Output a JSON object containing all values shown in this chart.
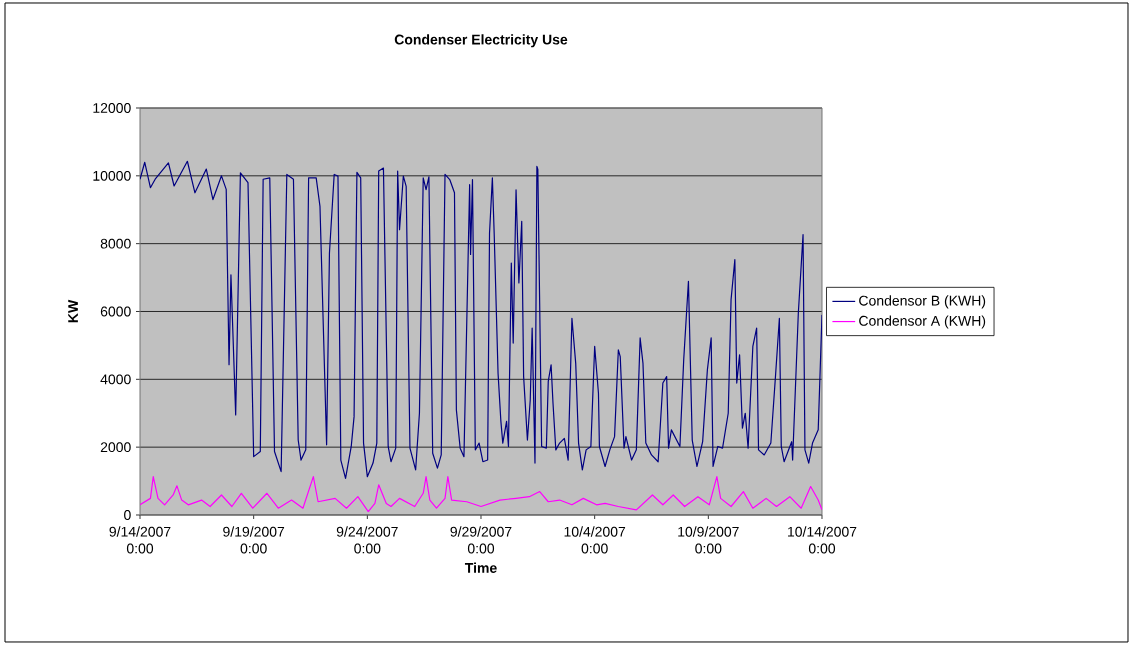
{
  "chart_data": {
    "type": "line",
    "title": "Condenser Electricity Use",
    "xlabel": "Time",
    "ylabel": "KW",
    "xlim": [
      "2007-09-14T00:00",
      "2007-10-14T00:00"
    ],
    "xticks": [
      {
        "value": "2007-09-14T00:00",
        "label": "9/14/2007 0:00"
      },
      {
        "value": "2007-09-19T00:00",
        "label": "9/19/2007 0:00"
      },
      {
        "value": "2007-09-24T00:00",
        "label": "9/24/2007 0:00"
      },
      {
        "value": "2007-09-29T00:00",
        "label": "9/29/2007 0:00"
      },
      {
        "value": "2007-10-04T00:00",
        "label": "10/4/2007 0:00"
      },
      {
        "value": "2007-10-09T00:00",
        "label": "10/9/2007 0:00"
      },
      {
        "value": "2007-10-14T00:00",
        "label": "10/14/2007 0:00"
      }
    ],
    "ylim": [
      0,
      12000
    ],
    "yticks": [
      0,
      2000,
      4000,
      6000,
      8000,
      10000,
      12000
    ],
    "grid": "y",
    "legend": "right",
    "series": [
      {
        "name": "Condensor B (KWH)",
        "color": "#000080",
        "x": [
          "2007-09-14T00:00",
          "2007-09-14T05:00",
          "2007-09-14T11:00",
          "2007-09-14T16:00",
          "2007-09-15T06:00",
          "2007-09-15T12:00",
          "2007-09-16T02:00",
          "2007-09-16T10:00",
          "2007-09-16T22:00",
          "2007-09-17T05:00",
          "2007-09-17T14:00",
          "2007-09-17T19:00",
          "2007-09-17T22:00",
          "2007-09-18T00:00",
          "2007-09-18T05:00",
          "2007-09-18T10:00",
          "2007-09-18T18:00",
          "2007-09-19T00:00",
          "2007-09-19T07:00",
          "2007-09-19T10:00",
          "2007-09-19T17:00",
          "2007-09-19T22:00",
          "2007-09-20T05:00",
          "2007-09-20T11:00",
          "2007-09-20T18:00",
          "2007-09-20T23:00",
          "2007-09-21T02:00",
          "2007-09-21T07:00",
          "2007-09-21T10:00",
          "2007-09-21T18:00",
          "2007-09-21T22:00",
          "2007-09-22T05:00",
          "2007-09-22T08:00",
          "2007-09-22T13:00",
          "2007-09-22T17:00",
          "2007-09-22T20:00",
          "2007-09-23T01:00",
          "2007-09-23T07:00",
          "2007-09-23T10:00",
          "2007-09-23T13:00",
          "2007-09-23T17:00",
          "2007-09-23T20:00",
          "2007-09-24T00:00",
          "2007-09-24T06:00",
          "2007-09-24T10:00",
          "2007-09-24T12:00",
          "2007-09-24T17:00",
          "2007-09-24T22:00",
          "2007-09-25T01:00",
          "2007-09-25T06:00",
          "2007-09-25T08:00",
          "2007-09-25T10:00",
          "2007-09-25T14:00",
          "2007-09-25T17:00",
          "2007-09-25T21:00",
          "2007-09-26T03:00",
          "2007-09-26T07:00",
          "2007-09-26T11:00",
          "2007-09-26T14:00",
          "2007-09-26T17:00",
          "2007-09-26T21:00",
          "2007-09-27T02:00",
          "2007-09-27T06:00",
          "2007-09-27T10:00",
          "2007-09-27T15:00",
          "2007-09-27T20:00",
          "2007-09-27T22:00",
          "2007-09-28T02:00",
          "2007-09-28T06:00",
          "2007-09-28T12:00",
          "2007-09-28T13:00",
          "2007-09-28T15:00",
          "2007-09-28T18:00",
          "2007-09-28T22:00",
          "2007-09-29T02:00",
          "2007-09-29T07:00",
          "2007-09-29T09:00",
          "2007-09-29T12:00",
          "2007-09-29T14:00",
          "2007-09-29T18:00",
          "2007-09-29T21:00",
          "2007-09-29T23:00",
          "2007-09-30T03:00",
          "2007-09-30T05:00",
          "2007-09-30T08:00",
          "2007-09-30T10:00",
          "2007-09-30T13:00",
          "2007-09-30T16:00",
          "2007-09-30T19:00",
          "2007-09-30T21:00",
          "2007-10-01T01:00",
          "2007-10-01T04:00",
          "2007-10-01T06:00",
          "2007-10-01T09:00",
          "2007-10-01T11:00",
          "2007-10-01T12:00",
          "2007-10-01T16:00",
          "2007-10-01T21:00",
          "2007-10-01T23:00",
          "2007-10-02T02:00",
          "2007-10-02T04:00",
          "2007-10-02T07:00",
          "2007-10-02T11:00",
          "2007-10-02T16:00",
          "2007-10-02T20:00",
          "2007-10-03T00:00",
          "2007-10-03T04:00",
          "2007-10-03T07:00",
          "2007-10-03T11:00",
          "2007-10-03T15:00",
          "2007-10-03T20:00",
          "2007-10-04T00:00",
          "2007-10-04T04:00",
          "2007-10-04T05:00",
          "2007-10-04T11:00",
          "2007-10-04T16:00",
          "2007-10-04T21:00",
          "2007-10-05T01:00",
          "2007-10-05T03:00",
          "2007-10-05T07:00",
          "2007-10-05T09:00",
          "2007-10-05T15:00",
          "2007-10-05T20:00",
          "2007-10-06T00:00",
          "2007-10-06T03:00",
          "2007-10-06T06:00",
          "2007-10-06T12:00",
          "2007-10-06T19:00",
          "2007-10-07T00:00",
          "2007-10-07T04:00",
          "2007-10-07T06:00",
          "2007-10-07T09:00",
          "2007-10-07T18:00",
          "2007-10-07T22:00",
          "2007-10-08T03:00",
          "2007-10-08T07:00",
          "2007-10-08T12:00",
          "2007-10-08T18:00",
          "2007-10-08T23:00",
          "2007-10-09T03:00",
          "2007-10-09T05:00",
          "2007-10-09T10:00",
          "2007-10-09T15:00",
          "2007-10-09T21:00",
          "2007-10-10T00:00",
          "2007-10-10T04:00",
          "2007-10-10T06:00",
          "2007-10-10T09:00",
          "2007-10-10T12:00",
          "2007-10-10T15:00",
          "2007-10-10T18:00",
          "2007-10-10T23:00",
          "2007-10-11T03:00",
          "2007-10-11T05:00",
          "2007-10-11T11:00",
          "2007-10-11T18:00",
          "2007-10-11T23:00",
          "2007-10-12T03:00",
          "2007-10-12T05:00",
          "2007-10-12T08:00",
          "2007-10-12T16:00",
          "2007-10-12T17:00",
          "2007-10-12T23:00",
          "2007-10-13T04:00",
          "2007-10-13T06:00",
          "2007-10-13T10:00",
          "2007-10-13T14:00",
          "2007-10-13T20:00",
          "2007-10-14T00:00"
        ],
        "values": [
          9900,
          10400,
          9650,
          9900,
          10380,
          9700,
          10430,
          9500,
          10200,
          9300,
          10000,
          9600,
          4430,
          7080,
          2950,
          10090,
          9800,
          1720,
          1870,
          9900,
          9940,
          1870,
          1280,
          10040,
          9900,
          2210,
          1620,
          1920,
          9940,
          9940,
          9100,
          2070,
          7720,
          10040,
          9990,
          1620,
          1080,
          2020,
          2900,
          10100,
          9940,
          2120,
          1130,
          1530,
          2120,
          10140,
          10230,
          2020,
          1570,
          1970,
          10140,
          8410,
          9990,
          9690,
          1970,
          1330,
          3000,
          9940,
          9590,
          9970,
          1820,
          1380,
          1770,
          10040,
          9890,
          9500,
          3100,
          1970,
          1720,
          9740,
          7680,
          9890,
          1920,
          2120,
          1570,
          1620,
          8310,
          9940,
          8220,
          4180,
          2760,
          2120,
          2760,
          2020,
          7430,
          5070,
          9590,
          6840,
          8660,
          4080,
          2210,
          3400,
          5510,
          1530,
          10280,
          10190,
          2020,
          1970,
          3940,
          4430,
          3300,
          1920,
          2120,
          2260,
          1620,
          5800,
          4470,
          2120,
          1330,
          1920,
          2020,
          4970,
          3590,
          2020,
          1430,
          1920,
          2310,
          4870,
          4670,
          1970,
          2310,
          1620,
          1920,
          5220,
          4470,
          2120,
          1770,
          1570,
          3890,
          4080,
          1970,
          2510,
          2020,
          4570,
          6890,
          2210,
          1430,
          2160,
          4280,
          5220,
          1430,
          2020,
          1970,
          3000,
          6350,
          7530,
          3890,
          4720,
          2560,
          3000,
          1970,
          4970,
          5510,
          1920,
          1770,
          2120,
          4130,
          5800,
          2020,
          1570,
          2160,
          1620,
          5950,
          8270,
          1920,
          1530,
          2120,
          2510,
          5900
        ]
      },
      {
        "name": "Condensor A (KWH)",
        "color": "#ff00ff",
        "x": [
          "2007-09-14T00:00",
          "2007-09-14T11:00",
          "2007-09-14T14:00",
          "2007-09-14T19:00",
          "2007-09-15T02:00",
          "2007-09-15T11:00",
          "2007-09-15T15:00",
          "2007-09-15T20:00",
          "2007-09-16T03:00",
          "2007-09-16T17:00",
          "2007-09-17T02:00",
          "2007-09-17T14:00",
          "2007-09-18T01:00",
          "2007-09-18T11:00",
          "2007-09-18T23:00",
          "2007-09-19T14:00",
          "2007-09-20T02:00",
          "2007-09-20T16:00",
          "2007-09-21T04:00",
          "2007-09-21T15:00",
          "2007-09-21T20:00",
          "2007-09-22T14:00",
          "2007-09-23T02:00",
          "2007-09-23T14:00",
          "2007-09-24T01:00",
          "2007-09-24T08:00",
          "2007-09-24T12:00",
          "2007-09-24T20:00",
          "2007-09-25T01:00",
          "2007-09-25T10:00",
          "2007-09-26T02:00",
          "2007-09-26T11:00",
          "2007-09-26T14:00",
          "2007-09-26T18:00",
          "2007-09-27T01:00",
          "2007-09-27T10:00",
          "2007-09-27T13:00",
          "2007-09-27T17:00",
          "2007-09-28T09:00",
          "2007-09-29T00:00",
          "2007-09-29T20:00",
          "2007-09-30T13:00",
          "2007-10-01T03:00",
          "2007-10-01T14:00",
          "2007-10-01T23:00",
          "2007-10-02T11:00",
          "2007-10-03T00:00",
          "2007-10-03T12:00",
          "2007-10-04T02:00",
          "2007-10-04T11:00",
          "2007-10-05T01:00",
          "2007-10-05T20:00",
          "2007-10-06T13:00",
          "2007-10-07T00:00",
          "2007-10-07T11:00",
          "2007-10-07T23:00",
          "2007-10-08T13:00",
          "2007-10-09T01:00",
          "2007-10-09T09:00",
          "2007-10-09T13:00",
          "2007-10-10T00:00",
          "2007-10-10T13:00",
          "2007-10-10T23:00",
          "2007-10-11T13:00",
          "2007-10-12T00:00",
          "2007-10-12T14:00",
          "2007-10-13T02:00",
          "2007-10-13T12:00",
          "2007-10-13T20:00",
          "2007-10-14T00:00"
        ],
        "values": [
          300,
          490,
          1130,
          490,
          300,
          590,
          860,
          440,
          300,
          440,
          250,
          590,
          250,
          640,
          200,
          640,
          200,
          440,
          200,
          1130,
          390,
          490,
          200,
          540,
          100,
          340,
          890,
          340,
          250,
          490,
          250,
          640,
          1130,
          440,
          200,
          490,
          1130,
          440,
          390,
          250,
          440,
          490,
          540,
          690,
          390,
          440,
          300,
          490,
          300,
          340,
          250,
          150,
          590,
          300,
          590,
          250,
          540,
          300,
          1130,
          490,
          250,
          690,
          200,
          490,
          250,
          540,
          200,
          840,
          440,
          150
        ]
      }
    ]
  }
}
